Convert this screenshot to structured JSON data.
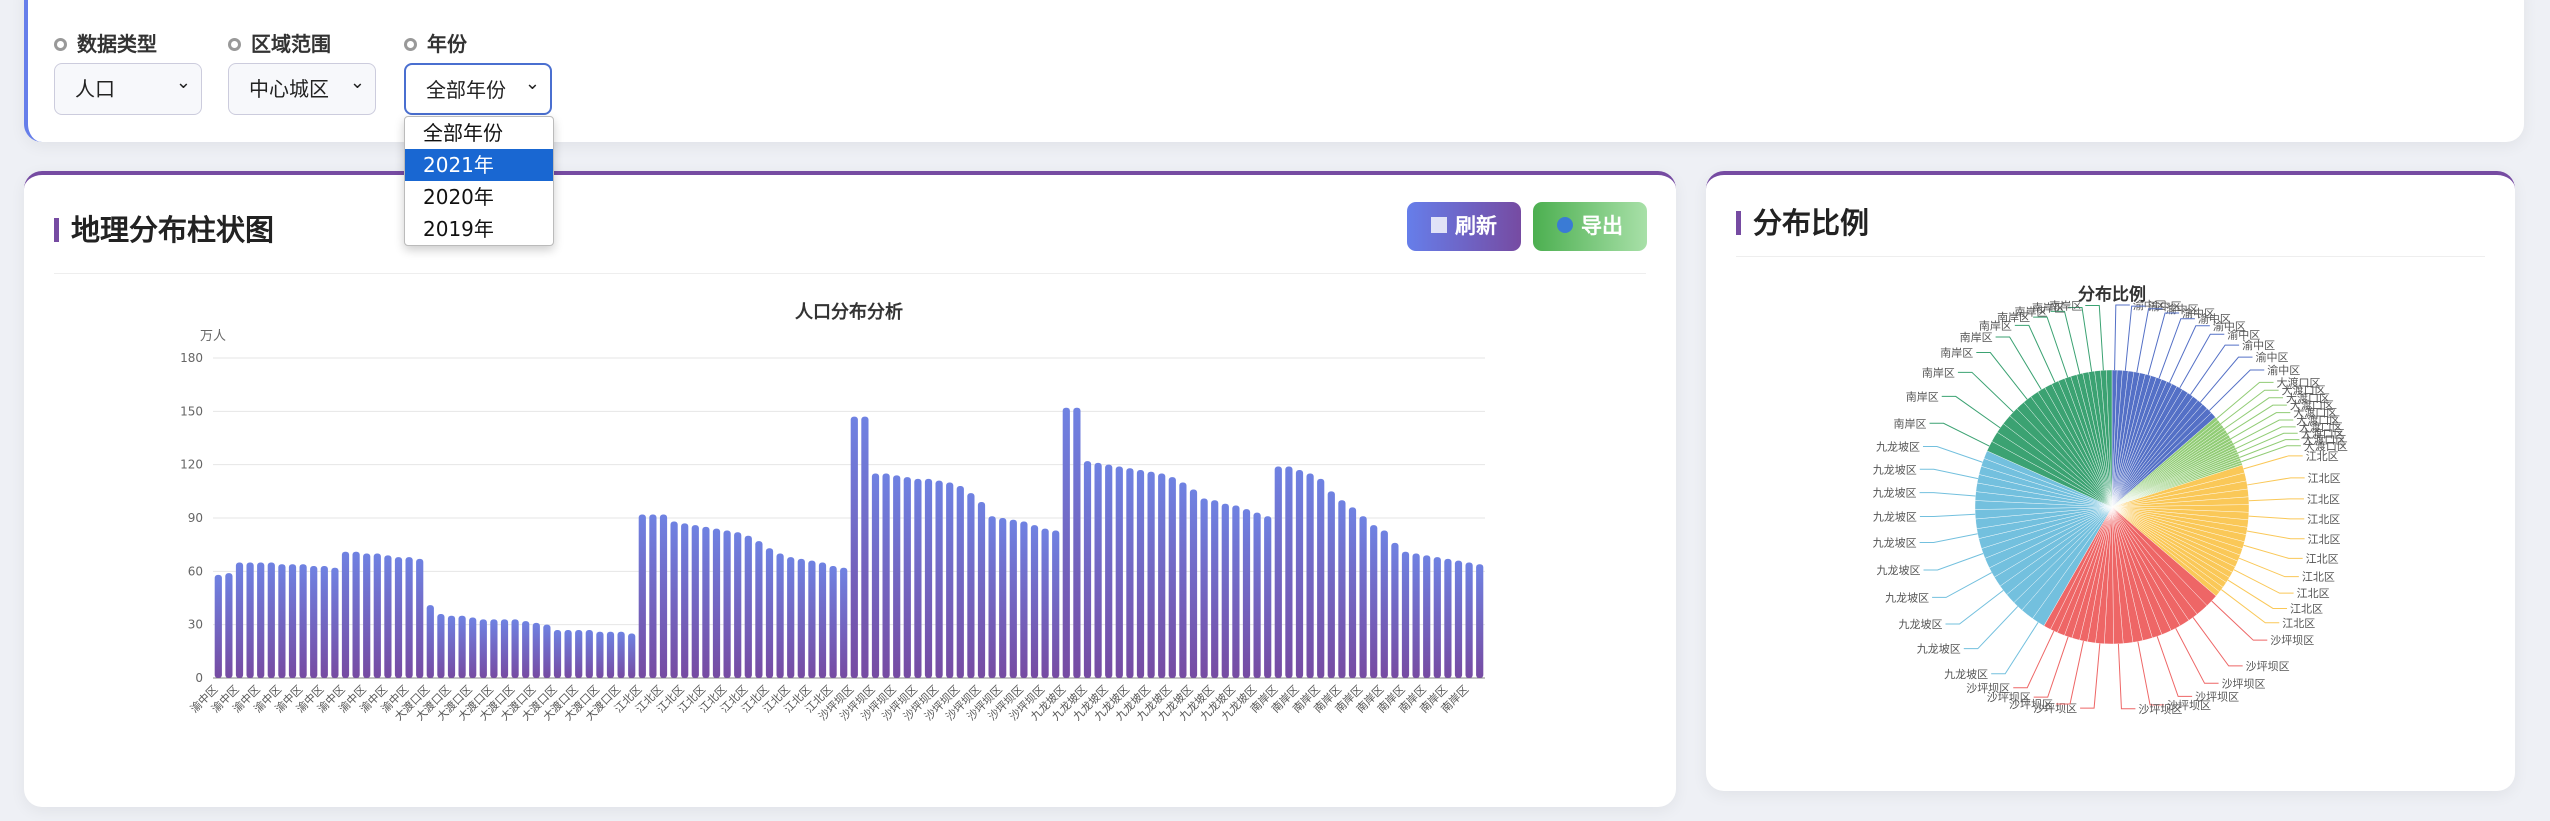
{
  "filters": [
    {
      "label": "数据类型",
      "value": "人口"
    },
    {
      "label": "区域范围",
      "value": "中心城区"
    },
    {
      "label": "年份",
      "value": "全部年份"
    }
  ],
  "dropdown": {
    "options": [
      "全部年份",
      "2021年",
      "2020年",
      "2019年"
    ],
    "selected": 1
  },
  "panels": {
    "bar_title": "地理分布柱状图",
    "pie_title": "分布比例",
    "buttons": [
      "刷新",
      "导出"
    ]
  },
  "chart_data": [
    {
      "type": "bar",
      "title": "人口分布分析",
      "y_unit": "万人",
      "color": [
        "#6f82e2",
        "#764ba2"
      ],
      "ylim": [
        0,
        180
      ],
      "yticks": [
        0,
        30,
        60,
        90,
        120,
        150,
        180
      ],
      "grid": true,
      "categories": [
        "渝中区",
        "渝中区",
        "渝中区",
        "渝中区",
        "渝中区",
        "渝中区",
        "渝中区",
        "渝中区",
        "渝中区",
        "渝中区",
        "渝中区",
        "渝中区",
        "渝中区",
        "渝中区",
        "渝中区",
        "渝中区",
        "渝中区",
        "渝中区",
        "渝中区",
        "渝中区",
        "大渡口区",
        "大渡口区",
        "大渡口区",
        "大渡口区",
        "大渡口区",
        "大渡口区",
        "大渡口区",
        "大渡口区",
        "大渡口区",
        "大渡口区",
        "大渡口区",
        "大渡口区",
        "大渡口区",
        "大渡口区",
        "大渡口区",
        "大渡口区",
        "大渡口区",
        "大渡口区",
        "大渡口区",
        "大渡口区",
        "江北区",
        "江北区",
        "江北区",
        "江北区",
        "江北区",
        "江北区",
        "江北区",
        "江北区",
        "江北区",
        "江北区",
        "江北区",
        "江北区",
        "江北区",
        "江北区",
        "江北区",
        "江北区",
        "江北区",
        "江北区",
        "江北区",
        "江北区",
        "沙坪坝区",
        "沙坪坝区",
        "沙坪坝区",
        "沙坪坝区",
        "沙坪坝区",
        "沙坪坝区",
        "沙坪坝区",
        "沙坪坝区",
        "沙坪坝区",
        "沙坪坝区",
        "沙坪坝区",
        "沙坪坝区",
        "沙坪坝区",
        "沙坪坝区",
        "沙坪坝区",
        "沙坪坝区",
        "沙坪坝区",
        "沙坪坝区",
        "沙坪坝区",
        "沙坪坝区",
        "九龙坡区",
        "九龙坡区",
        "九龙坡区",
        "九龙坡区",
        "九龙坡区",
        "九龙坡区",
        "九龙坡区",
        "九龙坡区",
        "九龙坡区",
        "九龙坡区",
        "九龙坡区",
        "九龙坡区",
        "九龙坡区",
        "九龙坡区",
        "九龙坡区",
        "九龙坡区",
        "九龙坡区",
        "九龙坡区",
        "九龙坡区",
        "九龙坡区",
        "南岸区",
        "南岸区",
        "南岸区",
        "南岸区",
        "南岸区",
        "南岸区",
        "南岸区",
        "南岸区",
        "南岸区",
        "南岸区",
        "南岸区",
        "南岸区",
        "南岸区",
        "南岸区",
        "南岸区",
        "南岸区",
        "南岸区",
        "南岸区",
        "南岸区",
        "南岸区"
      ],
      "values": [
        58,
        59,
        65,
        65,
        65,
        65,
        64,
        64,
        64,
        63,
        63,
        62,
        71,
        71,
        70,
        70,
        69,
        68,
        68,
        67,
        41,
        36,
        35,
        35,
        34,
        33,
        33,
        33,
        33,
        32,
        31,
        30,
        27,
        27,
        27,
        27,
        26,
        26,
        26,
        25,
        92,
        92,
        92,
        88,
        87,
        86,
        85,
        84,
        83,
        82,
        80,
        77,
        73,
        70,
        68,
        67,
        66,
        65,
        63,
        62,
        147,
        147,
        115,
        115,
        114,
        113,
        112,
        112,
        111,
        110,
        108,
        104,
        99,
        91,
        90,
        89,
        88,
        86,
        84,
        83,
        152,
        152,
        122,
        121,
        120,
        119,
        118,
        117,
        116,
        115,
        113,
        110,
        106,
        101,
        100,
        98,
        97,
        95,
        93,
        91,
        119,
        119,
        117,
        115,
        112,
        105,
        100,
        96,
        91,
        86,
        83,
        76,
        71,
        70,
        69,
        68,
        67,
        66,
        65,
        64
      ]
    },
    {
      "type": "pie",
      "title": "分布比例",
      "palette": [
        "#5470c6",
        "#91cc75",
        "#fac858",
        "#ee6666",
        "#73c0de",
        "#3ba272"
      ]
    }
  ]
}
